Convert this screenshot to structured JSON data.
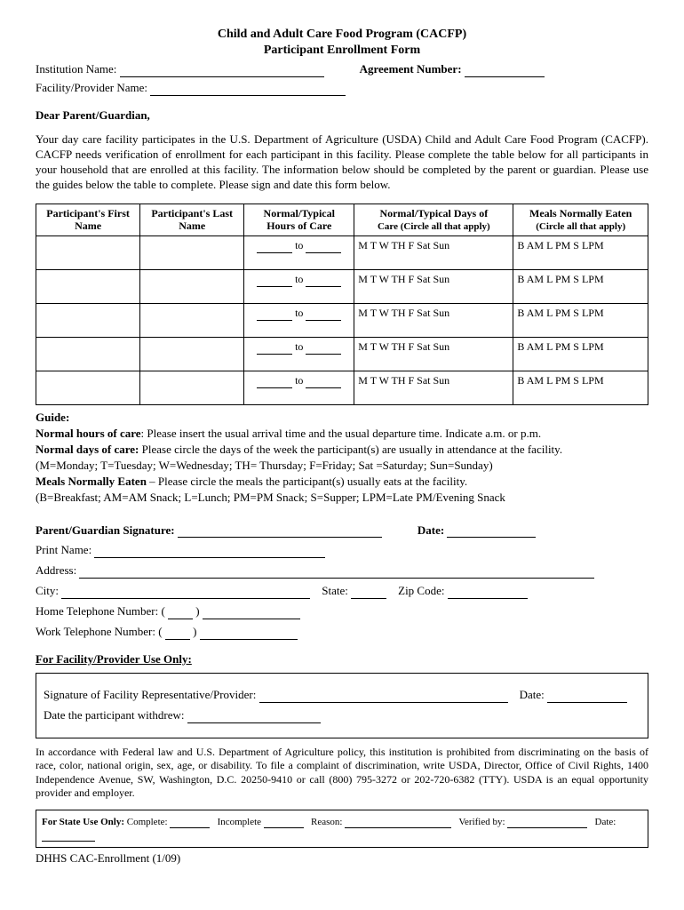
{
  "header": {
    "program": "Child and Adult Care Food Program (CACFP)",
    "title": "Participant Enrollment Form",
    "institution_label": "Institution Name:",
    "agreement_label": "Agreement Number:",
    "facility_label": "Facility/Provider Name:"
  },
  "letter": {
    "salutation": "Dear Parent/Guardian,",
    "body": "Your day care facility participates in the U.S. Department of Agriculture (USDA) Child and Adult Care Food Program (CACFP). CACFP needs verification of enrollment for each participant in this facility. Please complete the table below for all participants in your household that are enrolled at this facility. The information below should be completed by the parent or guardian. Please use the guides below the table to complete. Please sign and date this form below."
  },
  "table": {
    "headers": {
      "first": "Participant's First Name",
      "last": "Participant's Last Name",
      "hours": "Normal/Typical Hours of Care",
      "days_main": "Normal/Typical Days of",
      "days_sub": "Care (Circle all that apply)",
      "meals_main": "Meals Normally Eaten",
      "meals_sub": "(Circle all that apply)"
    },
    "to_label": "to",
    "days_text": "M  T  W  TH  F  Sat  Sun",
    "meals_text": "B  AM  L  PM  S  LPM",
    "row_count": 5
  },
  "guide": {
    "title": "Guide:",
    "hours_label": "Normal hours of care",
    "hours_text": ": Please insert the usual arrival time and the usual departure time. Indicate a.m. or p.m.",
    "days_label": "Normal days of care:",
    "days_text": " Please circle the days of the week the participant(s) are usually in attendance at the facility.",
    "days_key": "(M=Monday; T=Tuesday; W=Wednesday; TH= Thursday; F=Friday; Sat =Saturday; Sun=Sunday)",
    "meals_label": "Meals Normally Eaten",
    "meals_text": " – Please circle the meals the participant(s) usually eats at the facility.",
    "meals_key": "(B=Breakfast; AM=AM Snack; L=Lunch; PM=PM Snack; S=Supper; LPM=Late PM/Evening Snack"
  },
  "signature": {
    "sig_label": "Parent/Guardian Signature:",
    "date_label": "Date:",
    "print_label": "Print Name:",
    "address_label": "Address:",
    "city_label": "City:",
    "state_label": "State:",
    "zip_label": "Zip Code:",
    "home_phone_label": "Home Telephone Number: (",
    "work_phone_label": "Work Telephone Number: (",
    "phone_paren": ")"
  },
  "facility": {
    "header": "For Facility/Provider Use Only:",
    "rep_sig_label": "Signature of Facility Representative/Provider:",
    "date_label": "Date:",
    "withdrew_label": "Date the participant withdrew:"
  },
  "legal": {
    "text": "In accordance with Federal law and U.S. Department of Agriculture policy, this institution is prohibited from discriminating on the basis of race, color, national origin, sex, age, or disability. To file a complaint of discrimination, write USDA, Director, Office of Civil Rights, 1400 Independence Avenue, SW, Washington, D.C. 20250-9410 or call (800) 795-3272 or 202-720-6382 (TTY). USDA is an equal opportunity provider and employer."
  },
  "state_use": {
    "label": "For State Use Only:",
    "complete": "Complete:",
    "incomplete": "Incomplete",
    "reason": "Reason:",
    "verified": "Verified by:",
    "date": "Date:"
  },
  "footer": {
    "text": "DHHS CAC-Enrollment (1/09)"
  }
}
